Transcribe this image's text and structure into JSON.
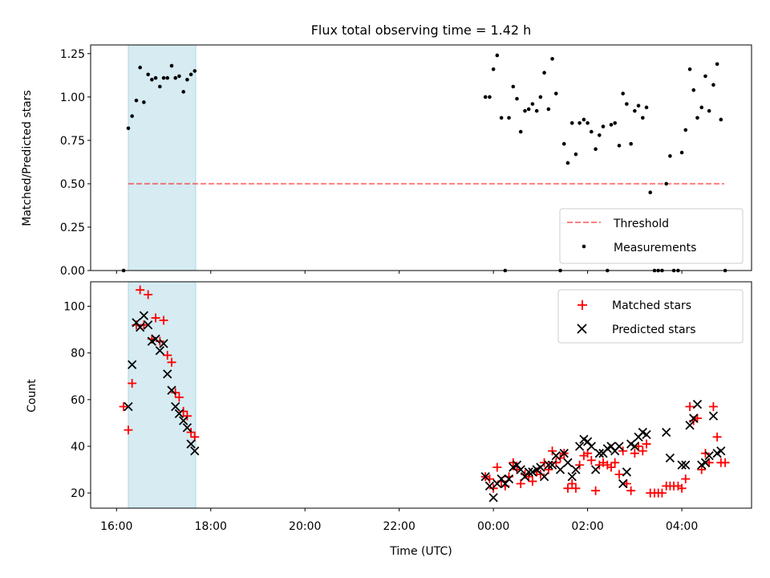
{
  "colors": {
    "band": "#add8e6",
    "threshold": "#ff0000",
    "measurement": "#000000",
    "matched": "#ff0000",
    "predicted": "#000000",
    "axis": "#000000"
  },
  "chart_data": [
    {
      "type": "scatter",
      "title": "Flux total observing time = 1.42 h",
      "ylabel": "Matched/Predicted stars",
      "xlabel": "",
      "x_unit": "hours since 16:00 UTC on the observing night",
      "xlim": [
        -0.55,
        13.48
      ],
      "ylim": [
        0,
        1.3
      ],
      "x_ticks": [
        0,
        2,
        4,
        6,
        8,
        10,
        12
      ],
      "y_ticks": [
        0,
        0.25,
        0.5,
        0.75,
        1.0,
        1.25
      ],
      "y_tick_labels": [
        "0.00",
        "0.25",
        "0.50",
        "0.75",
        "1.00",
        "1.25"
      ],
      "highlight_band": [
        0.25,
        1.68
      ],
      "threshold": {
        "name": "Threshold",
        "x": [
          0.25,
          12.9
        ],
        "y": 0.5,
        "style": "dashed"
      },
      "legend": {
        "position": "lower-right",
        "entries": [
          "Threshold",
          "Measurements"
        ]
      },
      "series": [
        {
          "name": "Measurements",
          "marker": "dot",
          "points": [
            [
              0.15,
              0.0
            ],
            [
              0.25,
              0.82
            ],
            [
              0.33,
              0.89
            ],
            [
              0.42,
              0.98
            ],
            [
              0.5,
              1.17
            ],
            [
              0.58,
              0.97
            ],
            [
              0.67,
              1.13
            ],
            [
              0.75,
              1.1
            ],
            [
              0.83,
              1.11
            ],
            [
              0.92,
              1.06
            ],
            [
              1.0,
              1.11
            ],
            [
              1.08,
              1.11
            ],
            [
              1.17,
              1.18
            ],
            [
              1.25,
              1.11
            ],
            [
              1.33,
              1.12
            ],
            [
              1.42,
              1.03
            ],
            [
              1.5,
              1.1
            ],
            [
              1.58,
              1.13
            ],
            [
              1.66,
              1.15
            ],
            [
              7.83,
              1.0
            ],
            [
              7.92,
              1.0
            ],
            [
              8.0,
              1.16
            ],
            [
              8.08,
              1.24
            ],
            [
              8.17,
              0.88
            ],
            [
              8.25,
              0.0
            ],
            [
              8.33,
              0.88
            ],
            [
              8.42,
              1.06
            ],
            [
              8.5,
              0.99
            ],
            [
              8.58,
              0.8
            ],
            [
              8.67,
              0.92
            ],
            [
              8.75,
              0.93
            ],
            [
              8.83,
              0.96
            ],
            [
              8.92,
              0.92
            ],
            [
              9.0,
              1.0
            ],
            [
              9.08,
              1.14
            ],
            [
              9.17,
              0.93
            ],
            [
              9.25,
              1.22
            ],
            [
              9.33,
              1.02
            ],
            [
              9.42,
              0.0
            ],
            [
              9.5,
              0.73
            ],
            [
              9.58,
              0.62
            ],
            [
              9.67,
              0.85
            ],
            [
              9.75,
              0.67
            ],
            [
              9.83,
              0.85
            ],
            [
              9.92,
              0.87
            ],
            [
              10.0,
              0.85
            ],
            [
              10.08,
              0.8
            ],
            [
              10.17,
              0.7
            ],
            [
              10.25,
              0.78
            ],
            [
              10.33,
              0.83
            ],
            [
              10.42,
              0.0
            ],
            [
              10.5,
              0.84
            ],
            [
              10.58,
              0.85
            ],
            [
              10.67,
              0.72
            ],
            [
              10.75,
              1.02
            ],
            [
              10.83,
              0.96
            ],
            [
              10.92,
              0.73
            ],
            [
              11.0,
              0.92
            ],
            [
              11.08,
              0.95
            ],
            [
              11.17,
              0.88
            ],
            [
              11.25,
              0.94
            ],
            [
              11.33,
              0.45
            ],
            [
              11.42,
              0.0
            ],
            [
              11.5,
              0.0
            ],
            [
              11.58,
              0.0
            ],
            [
              11.67,
              0.5
            ],
            [
              11.75,
              0.66
            ],
            [
              11.83,
              0.0
            ],
            [
              11.92,
              0.0
            ],
            [
              12.0,
              0.68
            ],
            [
              12.08,
              0.81
            ],
            [
              12.17,
              1.16
            ],
            [
              12.25,
              1.04
            ],
            [
              12.33,
              0.88
            ],
            [
              12.42,
              0.94
            ],
            [
              12.5,
              1.12
            ],
            [
              12.58,
              0.92
            ],
            [
              12.67,
              1.07
            ],
            [
              12.75,
              1.19
            ],
            [
              12.83,
              0.87
            ],
            [
              12.92,
              0.0
            ]
          ]
        }
      ]
    },
    {
      "type": "scatter",
      "title": "",
      "ylabel": "Count",
      "xlabel": "Time (UTC)",
      "x_unit": "hours since 16:00 UTC on the observing night",
      "xlim": [
        -0.55,
        13.48
      ],
      "ylim": [
        13.5,
        110.5
      ],
      "x_ticks": [
        0,
        2,
        4,
        6,
        8,
        10,
        12
      ],
      "x_tick_labels": [
        "16:00",
        "18:00",
        "20:00",
        "22:00",
        "00:00",
        "02:00",
        "04:00"
      ],
      "y_ticks": [
        20,
        40,
        60,
        80,
        100
      ],
      "y_tick_labels": [
        "20",
        "40",
        "60",
        "80",
        "100"
      ],
      "highlight_band": [
        0.25,
        1.68
      ],
      "legend": {
        "position": "upper-right",
        "entries": [
          "Matched stars",
          "Predicted stars"
        ]
      },
      "series": [
        {
          "name": "Matched stars",
          "marker": "plus",
          "points": [
            [
              0.15,
              57
            ],
            [
              0.25,
              47
            ],
            [
              0.33,
              67
            ],
            [
              0.42,
              92
            ],
            [
              0.5,
              107
            ],
            [
              0.58,
              92
            ],
            [
              0.67,
              105
            ],
            [
              0.75,
              86
            ],
            [
              0.83,
              95
            ],
            [
              0.92,
              85
            ],
            [
              1.0,
              94
            ],
            [
              1.08,
              79
            ],
            [
              1.17,
              76
            ],
            [
              1.25,
              63
            ],
            [
              1.33,
              61
            ],
            [
              1.42,
              55
            ],
            [
              1.5,
              53
            ],
            [
              1.58,
              46
            ],
            [
              1.66,
              44
            ],
            [
              7.83,
              27
            ],
            [
              7.92,
              26
            ],
            [
              8.0,
              22
            ],
            [
              8.08,
              31
            ],
            [
              8.17,
              25
            ],
            [
              8.25,
              23
            ],
            [
              8.33,
              27
            ],
            [
              8.42,
              33
            ],
            [
              8.5,
              30
            ],
            [
              8.58,
              24
            ],
            [
              8.67,
              28
            ],
            [
              8.75,
              27
            ],
            [
              8.83,
              25
            ],
            [
              8.92,
              29
            ],
            [
              9.0,
              28
            ],
            [
              9.08,
              33
            ],
            [
              9.17,
              30
            ],
            [
              9.25,
              38
            ],
            [
              9.33,
              33
            ],
            [
              9.42,
              35
            ],
            [
              9.5,
              37
            ],
            [
              9.58,
              22
            ],
            [
              9.67,
              24
            ],
            [
              9.75,
              22
            ],
            [
              9.83,
              32
            ],
            [
              9.92,
              36
            ],
            [
              10.0,
              37
            ],
            [
              10.08,
              34
            ],
            [
              10.17,
              21
            ],
            [
              10.25,
              32
            ],
            [
              10.33,
              33
            ],
            [
              10.42,
              32
            ],
            [
              10.5,
              31
            ],
            [
              10.58,
              33
            ],
            [
              10.67,
              28
            ],
            [
              10.75,
              38
            ],
            [
              10.83,
              24
            ],
            [
              10.92,
              21
            ],
            [
              11.0,
              37
            ],
            [
              11.08,
              40
            ],
            [
              11.17,
              38
            ],
            [
              11.25,
              41
            ],
            [
              11.33,
              20
            ],
            [
              11.42,
              20
            ],
            [
              11.5,
              20
            ],
            [
              11.58,
              20
            ],
            [
              11.67,
              23
            ],
            [
              11.75,
              23
            ],
            [
              11.83,
              23
            ],
            [
              11.92,
              23
            ],
            [
              12.0,
              22
            ],
            [
              12.08,
              26
            ],
            [
              12.17,
              57
            ],
            [
              12.25,
              51
            ],
            [
              12.33,
              52
            ],
            [
              12.42,
              30
            ],
            [
              12.5,
              37
            ],
            [
              12.58,
              33
            ],
            [
              12.67,
              57
            ],
            [
              12.75,
              44
            ],
            [
              12.83,
              33
            ],
            [
              12.92,
              33
            ]
          ]
        },
        {
          "name": "Predicted stars",
          "marker": "cross",
          "points": [
            [
              0.25,
              57
            ],
            [
              0.33,
              75
            ],
            [
              0.42,
              93
            ],
            [
              0.5,
              91
            ],
            [
              0.58,
              96
            ],
            [
              0.67,
              92
            ],
            [
              0.75,
              85
            ],
            [
              0.83,
              86
            ],
            [
              0.92,
              81
            ],
            [
              1.0,
              84
            ],
            [
              1.08,
              71
            ],
            [
              1.17,
              64
            ],
            [
              1.25,
              57
            ],
            [
              1.33,
              54
            ],
            [
              1.42,
              51
            ],
            [
              1.5,
              48
            ],
            [
              1.58,
              41
            ],
            [
              1.66,
              38
            ],
            [
              7.83,
              27
            ],
            [
              7.92,
              23
            ],
            [
              8.0,
              18
            ],
            [
              8.08,
              24
            ],
            [
              8.17,
              26
            ],
            [
              8.25,
              24
            ],
            [
              8.33,
              26
            ],
            [
              8.42,
              31
            ],
            [
              8.5,
              32
            ],
            [
              8.58,
              30
            ],
            [
              8.67,
              27
            ],
            [
              8.75,
              29
            ],
            [
              8.83,
              29
            ],
            [
              8.92,
              30
            ],
            [
              9.0,
              31
            ],
            [
              9.08,
              27
            ],
            [
              9.17,
              32
            ],
            [
              9.25,
              32
            ],
            [
              9.33,
              36
            ],
            [
              9.42,
              30
            ],
            [
              9.5,
              37
            ],
            [
              9.58,
              33
            ],
            [
              9.67,
              27
            ],
            [
              9.75,
              30
            ],
            [
              9.83,
              40
            ],
            [
              9.92,
              43
            ],
            [
              10.0,
              42
            ],
            [
              10.08,
              40
            ],
            [
              10.17,
              30
            ],
            [
              10.25,
              37
            ],
            [
              10.33,
              37
            ],
            [
              10.42,
              39
            ],
            [
              10.5,
              40
            ],
            [
              10.58,
              38
            ],
            [
              10.67,
              40
            ],
            [
              10.75,
              24
            ],
            [
              10.83,
              29
            ],
            [
              10.92,
              41
            ],
            [
              11.0,
              40
            ],
            [
              11.08,
              44
            ],
            [
              11.17,
              46
            ],
            [
              11.25,
              45
            ],
            [
              11.67,
              46
            ],
            [
              11.75,
              35
            ],
            [
              12.0,
              32
            ],
            [
              12.08,
              32
            ],
            [
              12.17,
              49
            ],
            [
              12.25,
              52
            ],
            [
              12.33,
              58
            ],
            [
              12.42,
              32
            ],
            [
              12.5,
              33
            ],
            [
              12.58,
              36
            ],
            [
              12.67,
              53
            ],
            [
              12.75,
              37
            ],
            [
              12.83,
              38
            ]
          ]
        }
      ]
    }
  ]
}
